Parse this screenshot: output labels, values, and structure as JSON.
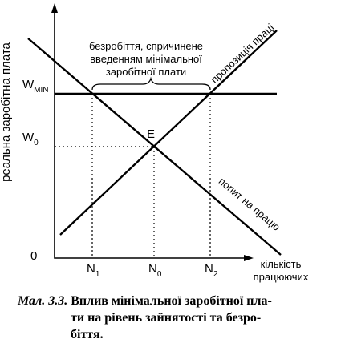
{
  "axes": {
    "y_label": "реальна заробітна плата",
    "x_label": [
      "кількість",
      "працюючих"
    ],
    "origin": "0"
  },
  "wage_levels": [
    {
      "symbol": "W",
      "subscript": "MIN"
    },
    {
      "symbol": "W",
      "subscript": "0"
    }
  ],
  "employment_levels": [
    {
      "symbol": "N",
      "subscript": "1"
    },
    {
      "symbol": "N",
      "subscript": "0"
    },
    {
      "symbol": "N",
      "subscript": "2"
    }
  ],
  "equilibrium_label": "E",
  "curves": {
    "supply": "пропозиція праці",
    "demand": "попит на працю"
  },
  "unemployment_note": [
    "безробіття, спричинене",
    "введенням мінімальної",
    "заробітної плати"
  ],
  "caption": {
    "label": "Мал. 3.3.",
    "lines": [
      "Вплив мінімальної заробітної пла-",
      "ти на рівень зайнятості та безро-",
      "біття."
    ]
  }
}
